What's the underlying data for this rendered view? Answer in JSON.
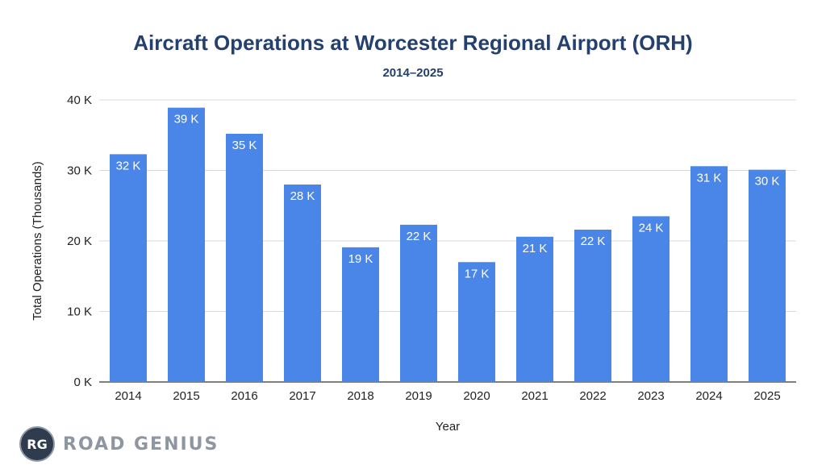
{
  "chart_data": {
    "type": "bar",
    "title": "Aircraft Operations at Worcester Regional Airport (ORH)",
    "subtitle": "2014–2025",
    "xlabel": "Year",
    "ylabel": "Total Operations (Thousands)",
    "categories": [
      "2014",
      "2015",
      "2016",
      "2017",
      "2018",
      "2019",
      "2020",
      "2021",
      "2022",
      "2023",
      "2024",
      "2025"
    ],
    "values": [
      32.3,
      38.9,
      35.2,
      28.0,
      19.1,
      22.3,
      17.0,
      20.6,
      21.6,
      23.5,
      30.6,
      30.1
    ],
    "data_labels": [
      "32 K",
      "39 K",
      "35 K",
      "28 K",
      "19 K",
      "22 K",
      "17 K",
      "21 K",
      "22 K",
      "24 K",
      "31 K",
      "30 K"
    ],
    "ylim": [
      0,
      40
    ],
    "yticks": [
      0,
      10,
      20,
      30,
      40
    ],
    "ytick_labels": [
      "0 K",
      "10 K",
      "20 K",
      "30 K",
      "40 K"
    ],
    "grid": true,
    "bar_color": "#4a86e8"
  },
  "logo": {
    "badge": "RG",
    "text": "ROAD GENIUS"
  }
}
